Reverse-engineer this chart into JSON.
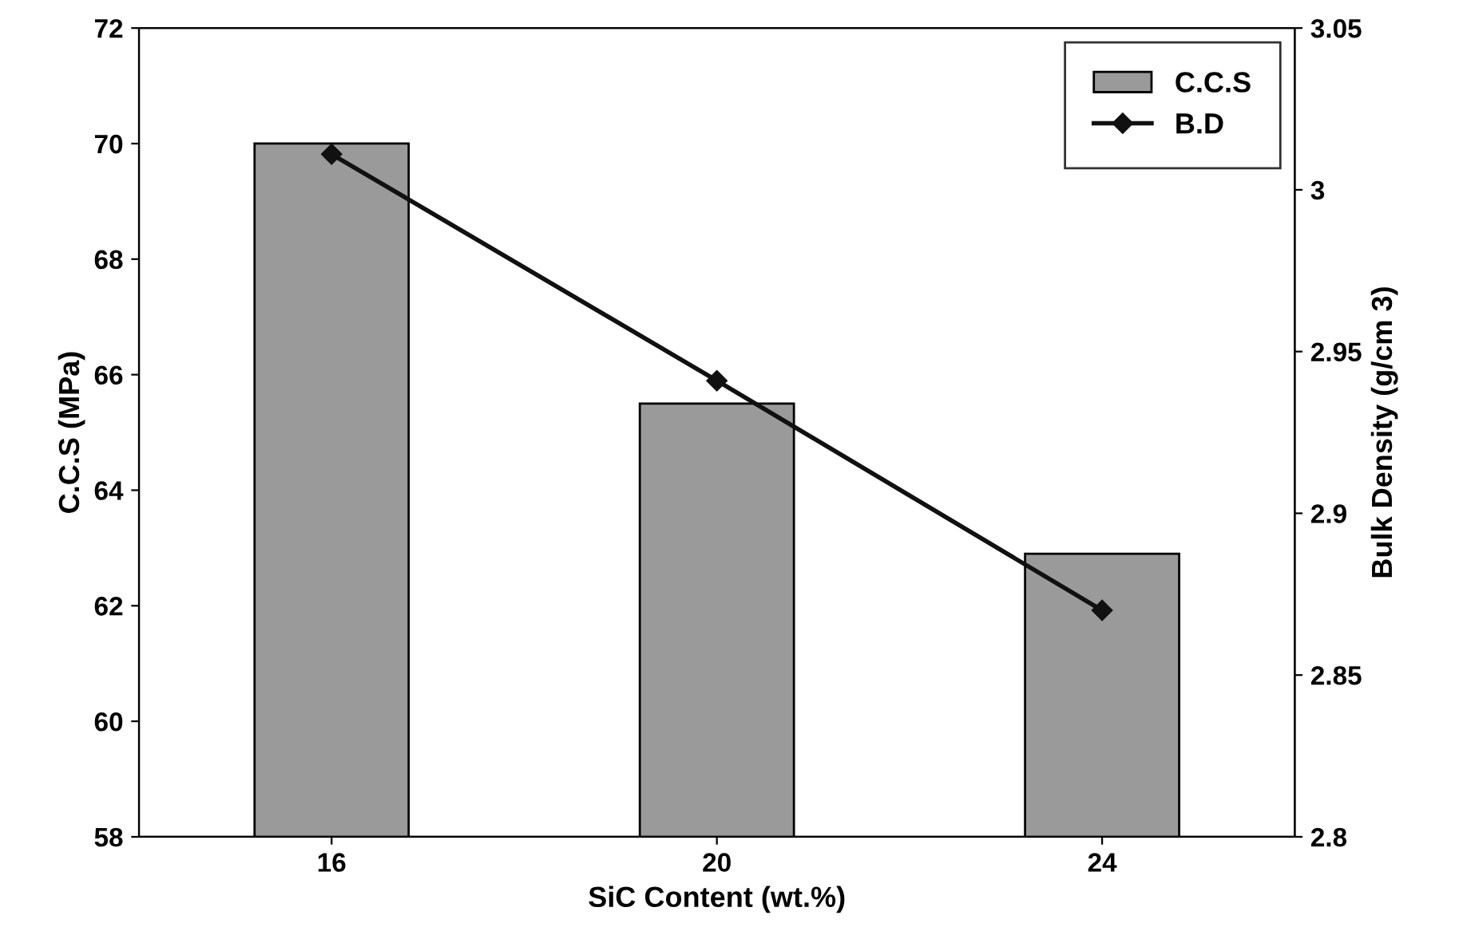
{
  "chart_data": {
    "type": "bar",
    "xlabel": "SiC Content (wt.%)",
    "ylabel": "C.C.S (MPa)",
    "y2label": "Bulk Density (g/cm 3)",
    "categories": [
      "16",
      "20",
      "24"
    ],
    "series": [
      {
        "name": "C.C.S",
        "color": "#9a9a9a",
        "values": [
          70.0,
          65.5,
          62.9
        ]
      },
      {
        "name": "B.D",
        "type": "line",
        "axis": "y2",
        "color": "#111111",
        "marker": "diamond",
        "line_style": "solid",
        "values": [
          3.011,
          2.941,
          2.87
        ]
      }
    ],
    "ylim": [
      58,
      72
    ],
    "yticks": [
      58,
      60,
      62,
      64,
      66,
      68,
      70,
      72
    ],
    "y2lim": [
      2.8,
      3.05
    ],
    "y2ticks": [
      {
        "value": 2.8,
        "label": "2.8"
      },
      {
        "value": 2.85,
        "label": "2.85"
      },
      {
        "value": 2.9,
        "label": "2.9"
      },
      {
        "value": 2.95,
        "label": "2.95"
      },
      {
        "value": 3.0,
        "label": "3"
      },
      {
        "value": 3.05,
        "label": "3.05"
      }
    ],
    "legend": "top right",
    "grid": false
  }
}
